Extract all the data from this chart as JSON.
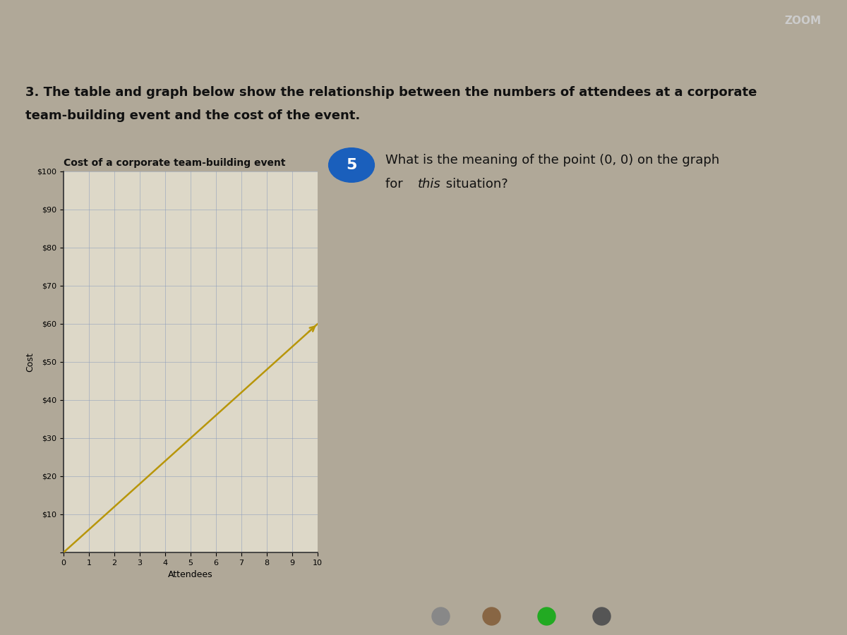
{
  "title": "Cost of a corporate team-building event",
  "xlabel": "Attendees",
  "ylabel": "Cost",
  "x_data": [
    0,
    10
  ],
  "y_data": [
    0,
    60
  ],
  "line_color": "#b8960a",
  "line_width": 1.8,
  "xlim": [
    0,
    10
  ],
  "ylim": [
    0,
    100
  ],
  "xticks": [
    0,
    1,
    2,
    3,
    4,
    5,
    6,
    7,
    8,
    9,
    10
  ],
  "yticks": [
    0,
    10,
    20,
    30,
    40,
    50,
    60,
    70,
    80,
    90,
    100
  ],
  "ytick_labels": [
    "",
    "$10",
    "$20",
    "$30",
    "$40",
    "$50",
    "$60",
    "$70",
    "$80",
    "$90",
    "$100"
  ],
  "grid_color": "#8899bb",
  "grid_alpha": 0.5,
  "plot_bg_color": "#ddd8c8",
  "fig_bg_color": "#b0a898",
  "top_bar_color": "#1a1a2e",
  "problem_text_line1": "3. The table and graph below show the relationship between the numbers of attendees at a corporate",
  "problem_text_line2": "team-building event and the cost of the event.",
  "question_number": "5",
  "question_text_line1": "What is the meaning of the point (0, 0) on the graph",
  "question_text_line2": "for this situation?",
  "circle_color": "#1a5fbc",
  "circle_text_color": "#ffffff",
  "zoom_text": "ZOOM",
  "title_fontsize": 10,
  "axis_label_fontsize": 9,
  "tick_fontsize": 8,
  "problem_fontsize": 13,
  "question_fontsize": 13
}
